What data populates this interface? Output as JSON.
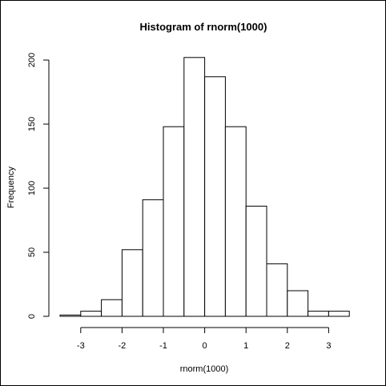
{
  "chart_data": {
    "type": "bar",
    "title": "Histogram of rnorm(1000)",
    "xlabel": "rnorm(1000)",
    "ylabel": "Frequency",
    "bin_edges": [
      -3.5,
      -3,
      -2.5,
      -2,
      -1.5,
      -1,
      -0.5,
      0,
      0.5,
      1,
      1.5,
      2,
      2.5,
      3,
      3.5
    ],
    "values": [
      1,
      4,
      13,
      52,
      91,
      148,
      202,
      187,
      148,
      86,
      41,
      20,
      4,
      4
    ],
    "xlim": [
      -3.5,
      3.5
    ],
    "ylim": [
      0,
      210
    ],
    "x_ticks": [
      -3,
      -2,
      -1,
      0,
      1,
      2,
      3
    ],
    "x_tick_labels": [
      "-3",
      "-2",
      "-1",
      "0",
      "1",
      "2",
      "3"
    ],
    "y_ticks": [
      0,
      50,
      100,
      150,
      200
    ],
    "y_tick_labels": [
      "0",
      "50",
      "100",
      "150",
      "200"
    ],
    "grid": false,
    "bar_fill": "#ffffff",
    "bar_stroke": "#000000"
  }
}
